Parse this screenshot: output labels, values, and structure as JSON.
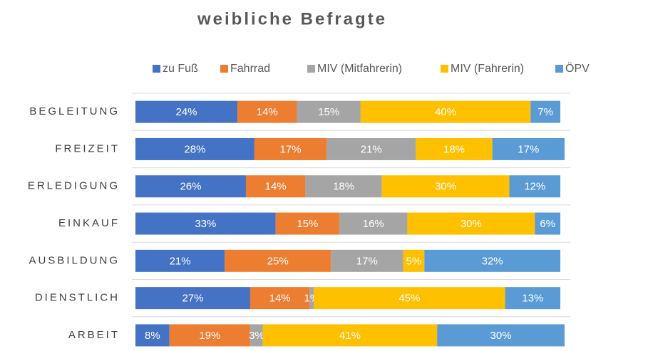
{
  "chart_data": {
    "type": "stacked-bar-horizontal",
    "title": "weibliche Befragte",
    "categories": [
      "BEGLEITUNG",
      "FREIZEIT",
      "ERLEDIGUNG",
      "EINKAUF",
      "AUSBILDUNG",
      "DIENSTLICH",
      "ARBEIT"
    ],
    "xlim": [
      0,
      100
    ],
    "series": [
      {
        "name": "zu Fuß",
        "color": "#4472c4",
        "values": [
          24,
          28,
          26,
          33,
          21,
          27,
          8
        ],
        "value_labels": [
          "24%",
          "28%",
          "26%",
          "33%",
          "21%",
          "27%",
          "8%"
        ]
      },
      {
        "name": "Fahrrad",
        "color": "#ed7d31",
        "values": [
          14,
          17,
          14,
          15,
          25,
          14,
          19
        ],
        "value_labels": [
          "14%",
          "17%",
          "14%",
          "15%",
          "25%",
          "14%",
          "19%"
        ]
      },
      {
        "name": "MIV (Mitfahrerin)",
        "color": "#a5a5a5",
        "values": [
          15,
          21,
          18,
          16,
          17,
          1,
          3
        ],
        "value_labels": [
          "15%",
          "21%",
          "18%",
          "16%",
          "17%",
          "1%",
          "3%"
        ]
      },
      {
        "name": "MIV (Fahrerin)",
        "color": "#ffc000",
        "values": [
          40,
          18,
          30,
          30,
          5,
          45,
          41
        ],
        "value_labels": [
          "40%",
          "18%",
          "30%",
          "30%",
          "5%",
          "45%",
          "41%"
        ]
      },
      {
        "name": "ÖPV",
        "color": "#5b9bd5",
        "values": [
          7,
          17,
          12,
          6,
          32,
          13,
          30
        ],
        "value_labels": [
          "7%",
          "17%",
          "12%",
          "6%",
          "32%",
          "13%",
          "30%"
        ]
      }
    ]
  }
}
